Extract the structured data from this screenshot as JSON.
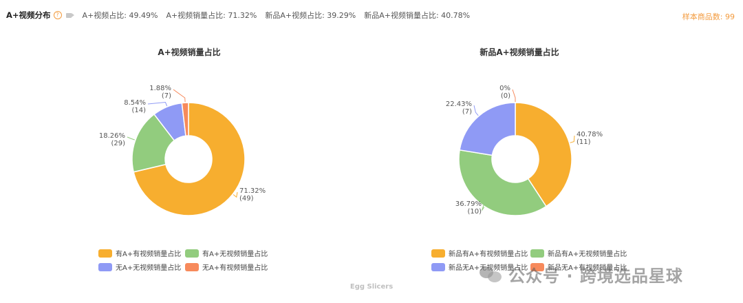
{
  "header": {
    "title": "A+视频分布",
    "stats": [
      "A+视频占比: 49.49%",
      "A+视频销量占比: 71.32%",
      "新品A+视频占比: 39.29%",
      "新品A+视频销量占比: 40.78%"
    ],
    "sample": "样本商品数: 99"
  },
  "icons": {
    "help": "question-circle-icon",
    "video": "video-camera-icon"
  },
  "chart_data": [
    {
      "type": "pie",
      "donut": true,
      "title": "A+视频销量占比",
      "slices": [
        {
          "name": "有A+有视频销量占比",
          "percent": 71.32,
          "count": 49,
          "color": "#f7ae2f",
          "label": "71.32%",
          "sublabel": "(49)"
        },
        {
          "name": "有A+无视频销量占比",
          "percent": 18.26,
          "count": 29,
          "color": "#92cc7e",
          "label": "18.26%",
          "sublabel": "(29)"
        },
        {
          "name": "无A+无视频销量占比",
          "percent": 8.54,
          "count": 14,
          "color": "#8f9af5",
          "label": "8.54%",
          "sublabel": "(14)"
        },
        {
          "name": "无A+有视频销量占比",
          "percent": 1.88,
          "count": 7,
          "color": "#f78a5c",
          "label": "1.88%",
          "sublabel": "(7)"
        }
      ]
    },
    {
      "type": "pie",
      "donut": true,
      "title": "新品A+视频销量占比",
      "slices": [
        {
          "name": "新品有A+有视频销量占比",
          "percent": 40.78,
          "count": 11,
          "color": "#f7ae2f",
          "label": "40.78%",
          "sublabel": "(11)"
        },
        {
          "name": "新品有A+无视频销量占比",
          "percent": 36.79,
          "count": 10,
          "color": "#92cc7e",
          "label": "36.79%",
          "sublabel": "(10)"
        },
        {
          "name": "新品无A+无视频销量占比",
          "percent": 22.43,
          "count": 7,
          "color": "#8f9af5",
          "label": "22.43%",
          "sublabel": "(7)"
        },
        {
          "name": "新品无A+有视频销量占比",
          "percent": 0,
          "count": 0,
          "color": "#f78a5c",
          "label": "0%",
          "sublabel": "(0)"
        }
      ]
    }
  ],
  "footer": "Egg Slicers",
  "watermark": "公众号 · 跨境选品星球"
}
